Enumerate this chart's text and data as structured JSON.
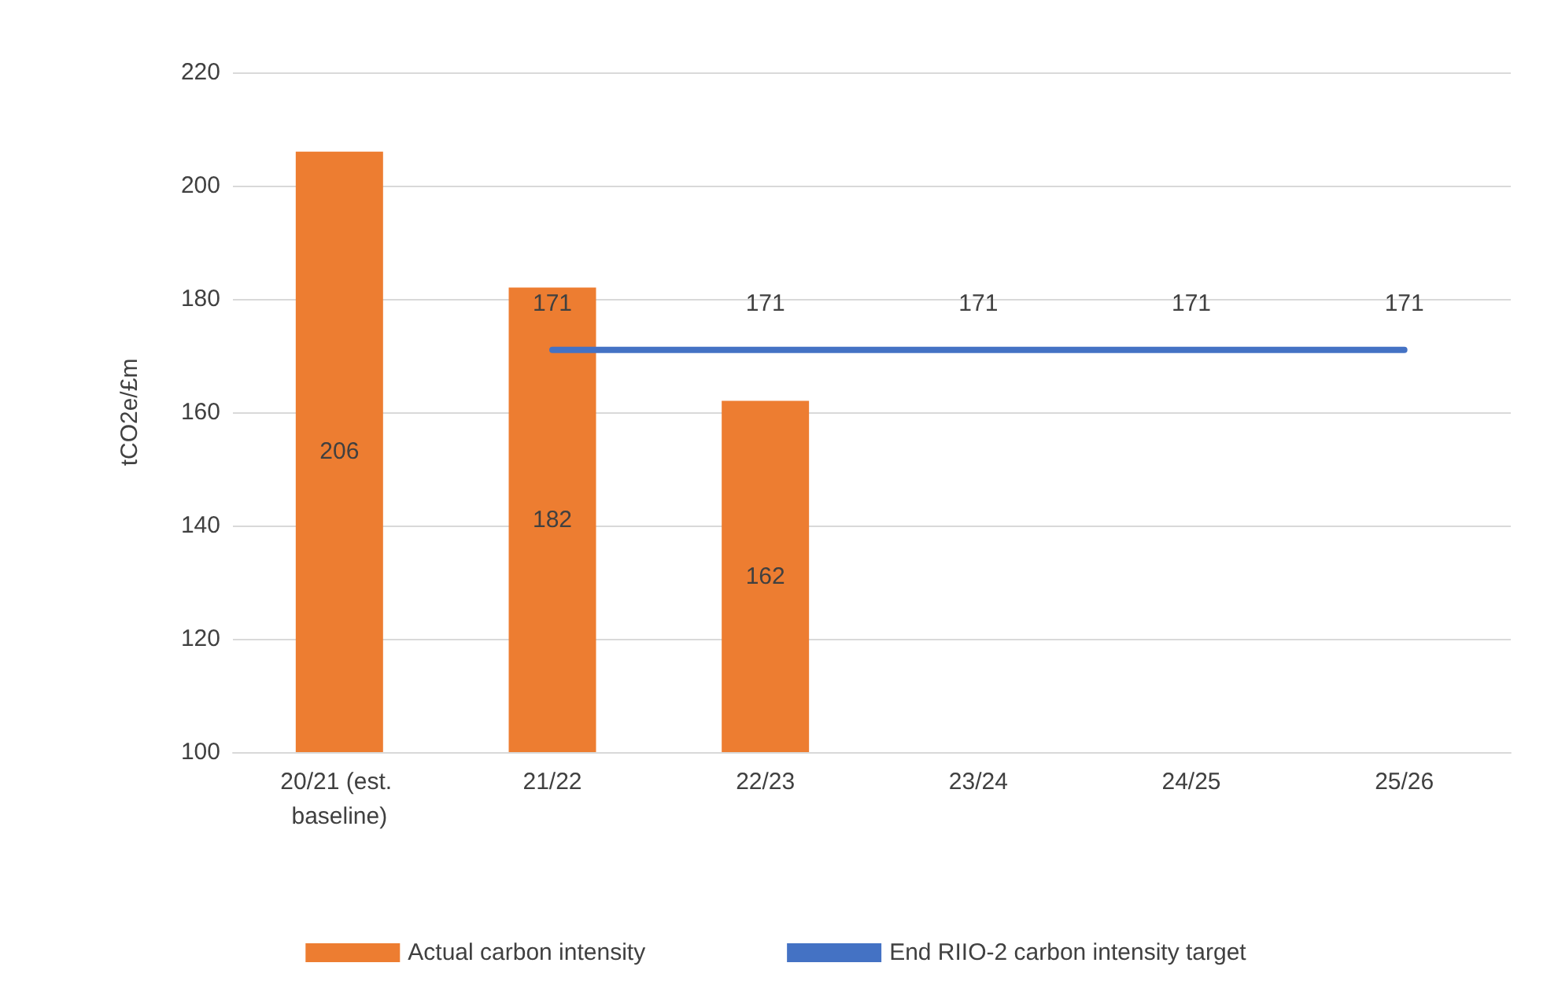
{
  "chart_data": {
    "type": "bar",
    "ylabel": "tCO2e/£m",
    "categories": [
      "20/21 (est. baseline)",
      "21/22",
      "22/23",
      "23/24",
      "24/25",
      "25/26"
    ],
    "series": [
      {
        "name": "Actual carbon intensity",
        "color": "#ed7d31",
        "values": [
          206,
          182,
          162,
          null,
          null,
          null
        ]
      },
      {
        "name": "End RIIO-2 carbon intensity target",
        "type": "line",
        "color": "#4472c4",
        "marker": "none",
        "values": [
          null,
          171,
          171,
          171,
          171,
          171
        ]
      }
    ],
    "ylim": [
      100,
      220
    ],
    "yticks": [
      100,
      120,
      140,
      160,
      180,
      200,
      220
    ],
    "grid": "y",
    "legend": "bottom",
    "data_labels": true
  }
}
